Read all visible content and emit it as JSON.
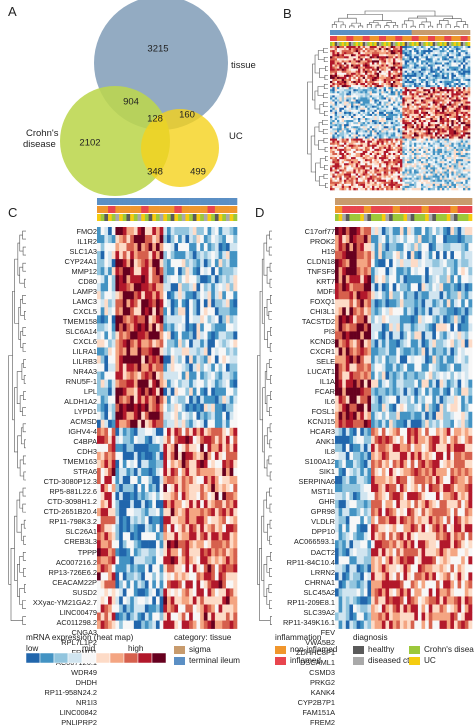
{
  "panels": {
    "A": {
      "letter": "A",
      "venn": {
        "tissue_label": "tissue",
        "crohns_label_line1": "Crohn's",
        "crohns_label_line2": "disease",
        "uc_label": "UC",
        "tissue_only": "3215",
        "tissue_crohns": "904",
        "crohns_only": "2102",
        "tissue_crohns_uc": "128",
        "tissue_uc": "160",
        "crohns_uc": "348",
        "uc_only": "499",
        "colors": {
          "tissue": "#8aa4bd",
          "crohns": "#bcd64d",
          "uc": "#f5d21c"
        }
      }
    },
    "B": {
      "letter": "B"
    },
    "C": {
      "letter": "C",
      "genes": [
        "FMO2",
        "IL1R2",
        "SLC1A3",
        "CYP24A1",
        "MMP12",
        "CD80",
        "LAMP3",
        "LAMC3",
        "CXCL5",
        "TMEM158",
        "SLC6A14",
        "CXCL6",
        "LILRA1",
        "LILRB3",
        "NR4A3",
        "RNU5F-1",
        "LPL",
        "ALDH1A2",
        "LYPD1",
        "ACMSD",
        "IGHV4-4",
        "C4BPA",
        "CDH3",
        "TMEM163",
        "STRA6",
        "CTD-3080P12.3",
        "RP5-881L22.6",
        "CTD-3098H1.2",
        "CTD-2651B20.4",
        "RP11-798K3.2",
        "SLC26A1",
        "CREB3L3",
        "TPPP",
        "AC007216.2",
        "RP13-726E6.2",
        "CEACAM22P",
        "SUSD2",
        "XXyac-YM21GA2.7",
        "LINC00479",
        "AC011298.2",
        "CNGA3",
        "RPL7L1P2",
        "FRMD1",
        "AC007126.1",
        "WDR49",
        "DHDH",
        "RP11-958N24.2",
        "NR1I3",
        "LINC00842",
        "PNLIPRP2"
      ]
    },
    "D": {
      "letter": "D",
      "genes": [
        "C17orf77",
        "PROK2",
        "H19",
        "CLDN18",
        "TNFSF9",
        "KRT7",
        "MDFI",
        "FOXQ1",
        "CHI3L1",
        "TACSTD2",
        "PI3",
        "KCND3",
        "CXCR1",
        "SELE",
        "LUCAT1",
        "IL1A",
        "FCAR",
        "IL6",
        "FOSL1",
        "KCNJ15",
        "HCAR3",
        "ANK1",
        "IL8",
        "S100A12",
        "SIK1",
        "SERPINA6",
        "MST1L",
        "GHR",
        "GPR98",
        "VLDLR",
        "DPP10",
        "AC066593.1",
        "DACT2",
        "RP11-84C10.4",
        "LRRN2",
        "CHRNA1",
        "SLC45A2",
        "RP11-209E8.1",
        "SLC39A2",
        "RP11-349K16.1",
        "FEV",
        "VWA5B2",
        "ZDHHC8P1",
        "DSCAML1",
        "CSMD3",
        "PRKG2",
        "KANK4",
        "CYP2B7P1",
        "FAM151A",
        "FREM2"
      ]
    }
  },
  "legend": {
    "expression": {
      "title": "mRNA expression (heat map)",
      "low": "low",
      "mid": "mid",
      "high": "high",
      "scale": [
        "#2166ac",
        "#4393c3",
        "#92c5de",
        "#d1e5f0",
        "#f7f7f7",
        "#fddbc7",
        "#f4a582",
        "#d6604d",
        "#b2182b",
        "#67001f"
      ]
    },
    "category": {
      "title": "category: tissue",
      "items": [
        {
          "label": "sigma",
          "color": "#c89b6d"
        },
        {
          "label": "terminal ileum",
          "color": "#5b8fc4"
        }
      ]
    },
    "inflammation": {
      "title": "inflammation",
      "items": [
        {
          "label": "non-inflamed",
          "color": "#f0962c"
        },
        {
          "label": "inflamed",
          "color": "#e8454e"
        }
      ]
    },
    "diagnosis": {
      "title": "diagnosis",
      "items": [
        {
          "label": "healthy",
          "color": "#5a5a5a"
        },
        {
          "label": "diseased ctrl.",
          "color": "#a9a9a9"
        }
      ]
    },
    "diagnosis2": {
      "items": [
        {
          "label": "Crohn's disease",
          "color": "#9cc83b"
        },
        {
          "label": "UC",
          "color": "#f5cc10"
        }
      ]
    }
  }
}
